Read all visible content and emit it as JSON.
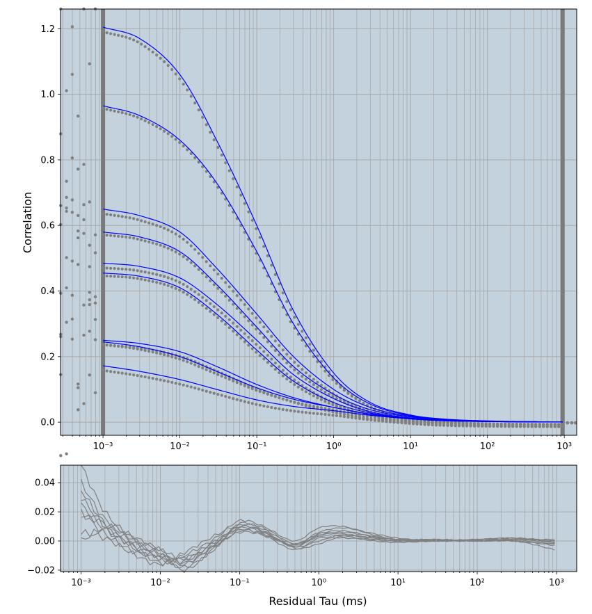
{
  "chart_data": [
    {
      "type": "scatter",
      "title": "",
      "xlabel": "",
      "ylabel": "Correlation",
      "xscale": "log",
      "xlim": [
        0.00028,
        1450
      ],
      "ylim": [
        -0.04,
        1.26
      ],
      "grid": true,
      "background": "#c4d2de",
      "xtick_labels": [
        "10⁻³",
        "10⁻²",
        "10⁻¹",
        "10⁰",
        "10¹",
        "10²",
        "10³"
      ],
      "ytick_labels": [
        "0.0",
        "0.2",
        "0.4",
        "0.6",
        "0.8",
        "1.0",
        "1.2"
      ],
      "fit_range_markers": [
        0.001,
        950
      ],
      "colors": {
        "data": "#808080",
        "fit": "#0000ff",
        "range_marker": "#7a7a7a"
      },
      "x": [
        0.001,
        0.003,
        0.01,
        0.03,
        0.1,
        0.3,
        1,
        3,
        10,
        30,
        100,
        300,
        950
      ],
      "series": [
        {
          "values": [
            1.205,
            1.17,
            1.06,
            0.86,
            0.6,
            0.34,
            0.15,
            0.06,
            0.022,
            0.009,
            0.004,
            0.002,
            0.001
          ]
        },
        {
          "values": [
            0.965,
            0.935,
            0.86,
            0.73,
            0.52,
            0.3,
            0.135,
            0.055,
            0.02,
            0.008,
            0.003,
            0.0015,
            0.001
          ]
        },
        {
          "values": [
            0.65,
            0.63,
            0.58,
            0.47,
            0.33,
            0.2,
            0.1,
            0.045,
            0.018,
            0.007,
            0.003,
            0.0015,
            0.001
          ]
        },
        {
          "values": [
            0.58,
            0.565,
            0.52,
            0.42,
            0.29,
            0.17,
            0.085,
            0.038,
            0.016,
            0.006,
            0.003,
            0.0015,
            0.001
          ]
        },
        {
          "values": [
            0.485,
            0.475,
            0.44,
            0.36,
            0.25,
            0.145,
            0.072,
            0.032,
            0.013,
            0.005,
            0.002,
            0.001,
            0.0005
          ]
        },
        {
          "values": [
            0.455,
            0.445,
            0.41,
            0.33,
            0.22,
            0.125,
            0.06,
            0.028,
            0.011,
            0.0045,
            0.002,
            0.001,
            0.0005
          ]
        },
        {
          "values": [
            0.25,
            0.24,
            0.215,
            0.17,
            0.115,
            0.075,
            0.045,
            0.024,
            0.01,
            0.004,
            0.002,
            0.001,
            0.0005
          ]
        },
        {
          "values": [
            0.245,
            0.23,
            0.2,
            0.155,
            0.105,
            0.07,
            0.045,
            0.025,
            0.011,
            0.0045,
            0.002,
            0.001,
            0.0005
          ]
        },
        {
          "values": [
            0.172,
            0.155,
            0.13,
            0.1,
            0.068,
            0.048,
            0.035,
            0.021,
            0.01,
            0.004,
            0.002,
            0.001,
            0.0005
          ]
        }
      ]
    },
    {
      "type": "line",
      "title": "",
      "xlabel": "Residual Tau (ms)",
      "ylabel": "",
      "xscale": "log",
      "xlim": [
        0.00055,
        1800
      ],
      "ylim": [
        -0.021,
        0.052
      ],
      "grid": true,
      "background": "#c4d2de",
      "xtick_labels": [
        "10⁻³",
        "10⁻²",
        "10⁻¹",
        "10⁰",
        "10¹",
        "10²",
        "10³"
      ],
      "ytick_labels": [
        "−0.02",
        "0.00",
        "0.02",
        "0.04"
      ],
      "colors": {
        "residual": "#808080"
      },
      "x": [
        0.001,
        0.002,
        0.005,
        0.01,
        0.02,
        0.05,
        0.1,
        0.2,
        0.5,
        1,
        2,
        5,
        10,
        30,
        100,
        300,
        950
      ],
      "series": [
        {
          "values": [
            0.052,
            0.02,
            0.0,
            -0.01,
            -0.012,
            0.0,
            0.008,
            0.004,
            -0.006,
            0.002,
            0.002,
            0.001,
            0.0,
            0.0,
            0.001,
            0.0,
            -0.002
          ]
        },
        {
          "values": [
            0.04,
            0.015,
            0.002,
            -0.006,
            -0.015,
            -0.002,
            0.01,
            0.006,
            -0.004,
            0.004,
            0.006,
            0.003,
            0.001,
            0.001,
            0.0,
            0.001,
            0.0
          ]
        },
        {
          "values": [
            0.035,
            0.012,
            -0.002,
            -0.012,
            -0.018,
            -0.005,
            0.012,
            0.008,
            -0.002,
            0.006,
            0.009,
            0.005,
            0.002,
            0.0,
            0.001,
            0.002,
            -0.001
          ]
        },
        {
          "values": [
            0.03,
            0.01,
            -0.005,
            -0.015,
            -0.01,
            0.002,
            0.014,
            0.01,
            0.0,
            0.009,
            0.01,
            0.004,
            0.001,
            0.001,
            0.0,
            0.0,
            -0.003
          ]
        },
        {
          "values": [
            0.025,
            0.008,
            -0.004,
            -0.008,
            -0.02,
            -0.004,
            0.007,
            0.005,
            -0.003,
            0.003,
            0.004,
            0.002,
            0.001,
            0.0,
            0.001,
            0.001,
            -0.001
          ]
        },
        {
          "values": [
            0.02,
            0.005,
            -0.008,
            -0.01,
            -0.014,
            0.0,
            0.01,
            0.007,
            -0.005,
            -0.002,
            0.003,
            0.0,
            -0.001,
            0.0,
            0.0,
            0.0,
            -0.006
          ]
        },
        {
          "values": [
            0.018,
            0.012,
            0.0,
            -0.006,
            -0.012,
            -0.002,
            0.009,
            0.006,
            -0.004,
            0.0,
            0.004,
            0.002,
            0.0,
            0.0,
            0.0,
            0.001,
            0.001
          ]
        },
        {
          "values": [
            0.006,
            0.002,
            -0.01,
            -0.016,
            -0.008,
            0.004,
            0.011,
            0.009,
            -0.002,
            0.005,
            0.007,
            0.003,
            0.001,
            0.0,
            0.001,
            0.002,
            0.0
          ]
        },
        {
          "values": [
            0.0,
            0.008,
            -0.006,
            -0.012,
            -0.016,
            -0.003,
            0.006,
            0.004,
            -0.003,
            0.004,
            0.005,
            0.001,
            0.0,
            0.001,
            0.0,
            0.0,
            -0.002
          ]
        }
      ]
    }
  ]
}
